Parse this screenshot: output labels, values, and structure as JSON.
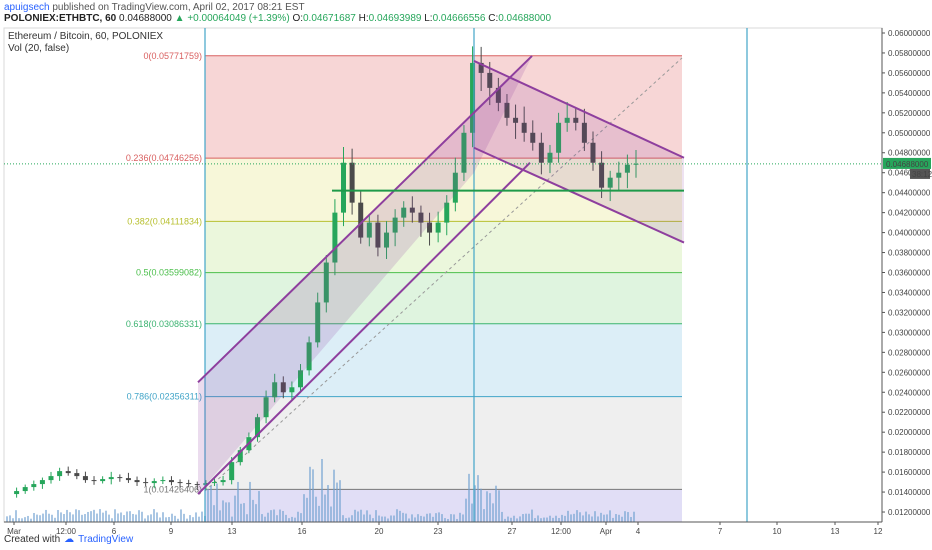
{
  "header": {
    "author": "apuigsech",
    "published": "published on TradingView.com, April 02, 2017 08:21 EST",
    "symbol": "POLONIEX:ETHBTC, 60",
    "change": "+0.00064049 (+1.39%)",
    "o_label": "O:",
    "o": "0.04671687",
    "h_label": "H:",
    "h": "0.04693989",
    "l_label": "L:",
    "l": "0.04666556",
    "c_label": "C:",
    "c": "0.04688000",
    "last_price": "0.04688000",
    "countdown": "38:12"
  },
  "legend": {
    "title": "Ethereum / Bitcoin, 60, POLONIEX",
    "indicator": "Vol (20, false)"
  },
  "footer": {
    "created_with": "Created with",
    "brand": "TradingView"
  },
  "colors": {
    "up_candle": "#26a65b",
    "down_candle": "#4a4a4a",
    "volume": "#6fa0d0",
    "channel": "#8e3f9e",
    "support": "#1e9a4a",
    "marker": "#42a5c8"
  },
  "chart_data": {
    "type": "candlestick",
    "ylim": [
      0.011,
      0.0605
    ],
    "y_ticks": [
      "0.06000000",
      "0.05800000",
      "0.05600000",
      "0.05400000",
      "0.05200000",
      "0.05000000",
      "0.04800000",
      "0.04600000",
      "0.04400000",
      "0.04200000",
      "0.04000000",
      "0.03800000",
      "0.03600000",
      "0.03400000",
      "0.03200000",
      "0.03000000",
      "0.02800000",
      "0.02600000",
      "0.02400000",
      "0.02200000",
      "0.02000000",
      "0.01800000",
      "0.01600000",
      "0.01400000",
      "0.01200000"
    ],
    "x_ticks": [
      "Mar",
      "12:00",
      "6",
      "9",
      "13",
      "16",
      "20",
      "23",
      "27",
      "12:00",
      "Apr",
      "4",
      "7",
      "10",
      "13",
      "12"
    ],
    "fibonacci": [
      {
        "label": "0(0.05771759)",
        "level": 0,
        "price": 0.05771759
      },
      {
        "label": "0.236(0.04746256)",
        "level": 0.236,
        "price": 0.04746256
      },
      {
        "label": "0.382(0.04111834)",
        "level": 0.382,
        "price": 0.04111834
      },
      {
        "label": "0.5(0.03599082)",
        "level": 0.5,
        "price": 0.03599082
      },
      {
        "label": "0.618(0.03086331)",
        "level": 0.618,
        "price": 0.03086331
      },
      {
        "label": "0.786(0.02356311)",
        "level": 0.786,
        "price": 0.02356311
      },
      {
        "label": "1(0.01426406)",
        "level": 1,
        "price": 0.01426406
      }
    ],
    "close_series": [
      0.0138,
      0.0141,
      0.0145,
      0.0148,
      0.0152,
      0.0156,
      0.0161,
      0.0159,
      0.0156,
      0.0152,
      0.0151,
      0.0153,
      0.0155,
      0.0154,
      0.0152,
      0.015,
      0.0149,
      0.0151,
      0.0152,
      0.015,
      0.0149,
      0.0148,
      0.0147,
      0.0149,
      0.015,
      0.0152,
      0.017,
      0.0182,
      0.0195,
      0.0215,
      0.0235,
      0.025,
      0.024,
      0.0245,
      0.0262,
      0.029,
      0.033,
      0.037,
      0.042,
      0.047,
      0.043,
      0.0395,
      0.041,
      0.0385,
      0.04,
      0.0415,
      0.0425,
      0.042,
      0.041,
      0.04,
      0.041,
      0.043,
      0.046,
      0.05,
      0.057,
      0.056,
      0.0545,
      0.053,
      0.0515,
      0.051,
      0.05,
      0.049,
      0.047,
      0.048,
      0.051,
      0.0515,
      0.051,
      0.049,
      0.047,
      0.0445,
      0.0455,
      0.046,
      0.0468,
      0.0469
    ]
  }
}
